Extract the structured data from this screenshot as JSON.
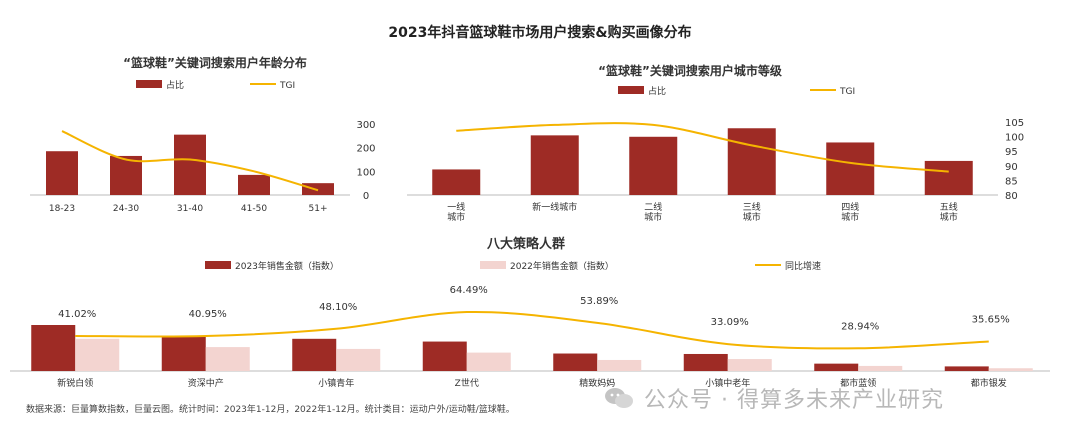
{
  "main_title": "2023年抖音篮球鞋市场用户搜索&购买画像分布",
  "footnote": "数据来源：巨量算数指数，巨量云图。统计时间：2023年1-12月，2022年1-12月。统计类目：运动户外/运动鞋/篮球鞋。",
  "watermark": "公众号 · 得算多未来产业研究",
  "colors": {
    "bar": "#9e2b25",
    "bar_light": "#f3d4d0",
    "line": "#f5b400"
  },
  "chart_data": [
    {
      "type": "bar",
      "title": "“篮球鞋”关键词搜索用户年龄分布",
      "legend": [
        "占比",
        "TGI"
      ],
      "categories": [
        "18-23",
        "24-30",
        "31-40",
        "41-50",
        "51+"
      ],
      "series": [
        {
          "name": "占比",
          "kind": "bar",
          "values": [
            185,
            165,
            255,
            85,
            50
          ]
        },
        {
          "name": "TGI",
          "kind": "line",
          "values": [
            270,
            150,
            150,
            100,
            20
          ]
        }
      ],
      "ylim": [
        0,
        300
      ],
      "yticks": [
        "300",
        "200",
        "100",
        "0"
      ],
      "secondary_axis": "right"
    },
    {
      "type": "bar",
      "title": "“篮球鞋”关键词搜索用户城市等级",
      "legend": [
        "占比",
        "TGI"
      ],
      "categories": [
        "一线\n城市",
        "新一线城市",
        "二线\n城市",
        "三线\n城市",
        "四线\n城市",
        "五线\n城市"
      ],
      "series": [
        {
          "name": "占比",
          "kind": "bar",
          "values": [
            9,
            21,
            20.5,
            23.5,
            18.5,
            12
          ]
        },
        {
          "name": "TGI",
          "kind": "line",
          "values": [
            102,
            104,
            104,
            97,
            91,
            88
          ]
        }
      ],
      "ylim_right": [
        80,
        105
      ],
      "yticks_right": [
        "105",
        "100",
        "95",
        "90",
        "85",
        "80"
      ]
    },
    {
      "type": "bar",
      "title": "八大策略人群",
      "legend": [
        "2023年销售金额（指数）",
        "2022年销售金额（指数）",
        "同比增速"
      ],
      "categories": [
        "新锐白领",
        "资深中产",
        "小镇青年",
        "Z世代",
        "精致妈妈",
        "小镇中老年",
        "都市蓝领",
        "都市银发"
      ],
      "series": [
        {
          "name": "2023年销售金额（指数）",
          "kind": "bar",
          "values": [
            100,
            75,
            70,
            64,
            38,
            37,
            16,
            10
          ]
        },
        {
          "name": "2022年销售金额（指数）",
          "kind": "bar",
          "values": [
            70,
            52,
            48,
            40,
            24,
            26,
            11,
            6
          ]
        },
        {
          "name": "同比增速",
          "kind": "line",
          "values": [
            41.02,
            40.95,
            48.1,
            64.49,
            53.89,
            33.09,
            28.94,
            35.65
          ],
          "labels": [
            "41.02%",
            "40.95%",
            "48.10%",
            "64.49%",
            "53.89%",
            "33.09%",
            "28.94%",
            "35.65%"
          ]
        }
      ]
    }
  ]
}
